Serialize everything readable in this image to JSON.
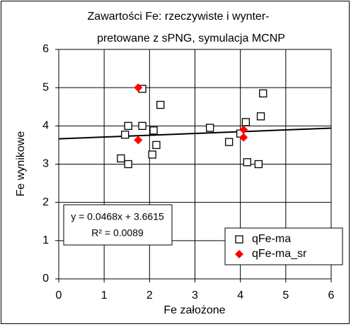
{
  "chart_data": {
    "type": "scatter",
    "title": [
      "Zawartości Fe: rzeczywiste i wynter-",
      "pretowane z sPNG, symulacja MCNP"
    ],
    "x_label": "Fe założone",
    "y_label": "Fe wynikowe",
    "xlim": [
      0,
      6
    ],
    "ylim": [
      0,
      6
    ],
    "xticks": [
      0,
      1,
      2,
      3,
      4,
      5,
      6
    ],
    "yticks": [
      0,
      1,
      2,
      3,
      4,
      5,
      6
    ],
    "grid": true,
    "legend": "lower right",
    "series": [
      {
        "name": "qFe-ma",
        "color": "#000000",
        "marker": "square",
        "x": [
          1.37,
          1.53,
          1.46,
          1.53,
          1.84,
          1.84,
          2.09,
          2.06,
          2.15,
          2.24,
          3.33,
          3.75,
          4.0,
          4.12,
          4.15,
          4.4,
          4.45,
          4.5
        ],
        "values": [
          3.15,
          3.0,
          3.77,
          4.0,
          4.97,
          4.0,
          3.88,
          3.25,
          3.5,
          4.55,
          3.95,
          3.58,
          3.8,
          4.1,
          3.05,
          3.0,
          4.25,
          4.85
        ]
      },
      {
        "name": "qFe-ma_sr",
        "color": "#ff0000",
        "marker": "diamond",
        "x": [
          1.75,
          1.75,
          4.07,
          4.07
        ],
        "values": [
          5.0,
          3.63,
          3.9,
          3.7
        ]
      }
    ],
    "trendline": {
      "slope": 0.0468,
      "intercept": 3.6615,
      "color": "#000000"
    },
    "annotations": [
      "y = 0.0468x + 3.6615",
      "R² = 0.0089"
    ]
  }
}
